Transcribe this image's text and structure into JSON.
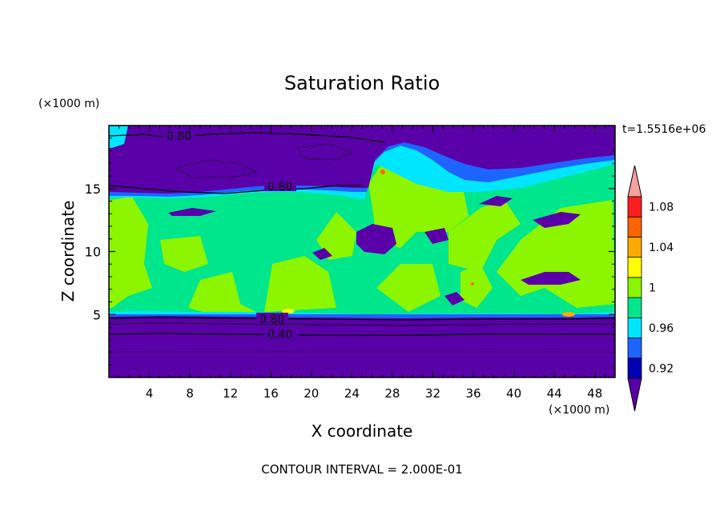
{
  "chart_data": {
    "type": "heatmap",
    "title": "Saturation Ratio",
    "xlabel": "X coordinate",
    "ylabel": "Z coordinate",
    "x_unit": "(×1000 m)",
    "y_unit": "(×1000 m)",
    "time_label": "t=1.5516e+06",
    "footer": "CONTOUR INTERVAL = 2.000E-01",
    "xlim": [
      0,
      50
    ],
    "ylim": [
      0,
      20
    ],
    "x_ticks": [
      4,
      8,
      12,
      16,
      20,
      24,
      28,
      32,
      36,
      40,
      44,
      48
    ],
    "y_ticks": [
      5,
      10,
      15
    ],
    "colorbar": {
      "levels": [
        0.92,
        0.94,
        0.96,
        0.98,
        1,
        1.02,
        1.04,
        1.06,
        1.08,
        1.1
      ],
      "labels": [
        "0.92",
        "0.96",
        "1",
        "1.04",
        "1.08"
      ],
      "colors": [
        "#5a00a8",
        "#0000b4",
        "#1e64ff",
        "#00e6ff",
        "#00e68c",
        "#8cf500",
        "#ffff00",
        "#ffaa00",
        "#ff6400",
        "#ff1e1e",
        "#f5a0a0"
      ]
    },
    "contour_labels": [
      "0.80",
      "0.80",
      "0.80",
      "0.40"
    ],
    "regions": {
      "upper_dry_layer_z": [
        15.2,
        19.6
      ],
      "moist_layer_z": [
        5.2,
        15.2
      ],
      "lower_dry_layer_z": [
        0,
        5.2
      ]
    }
  }
}
